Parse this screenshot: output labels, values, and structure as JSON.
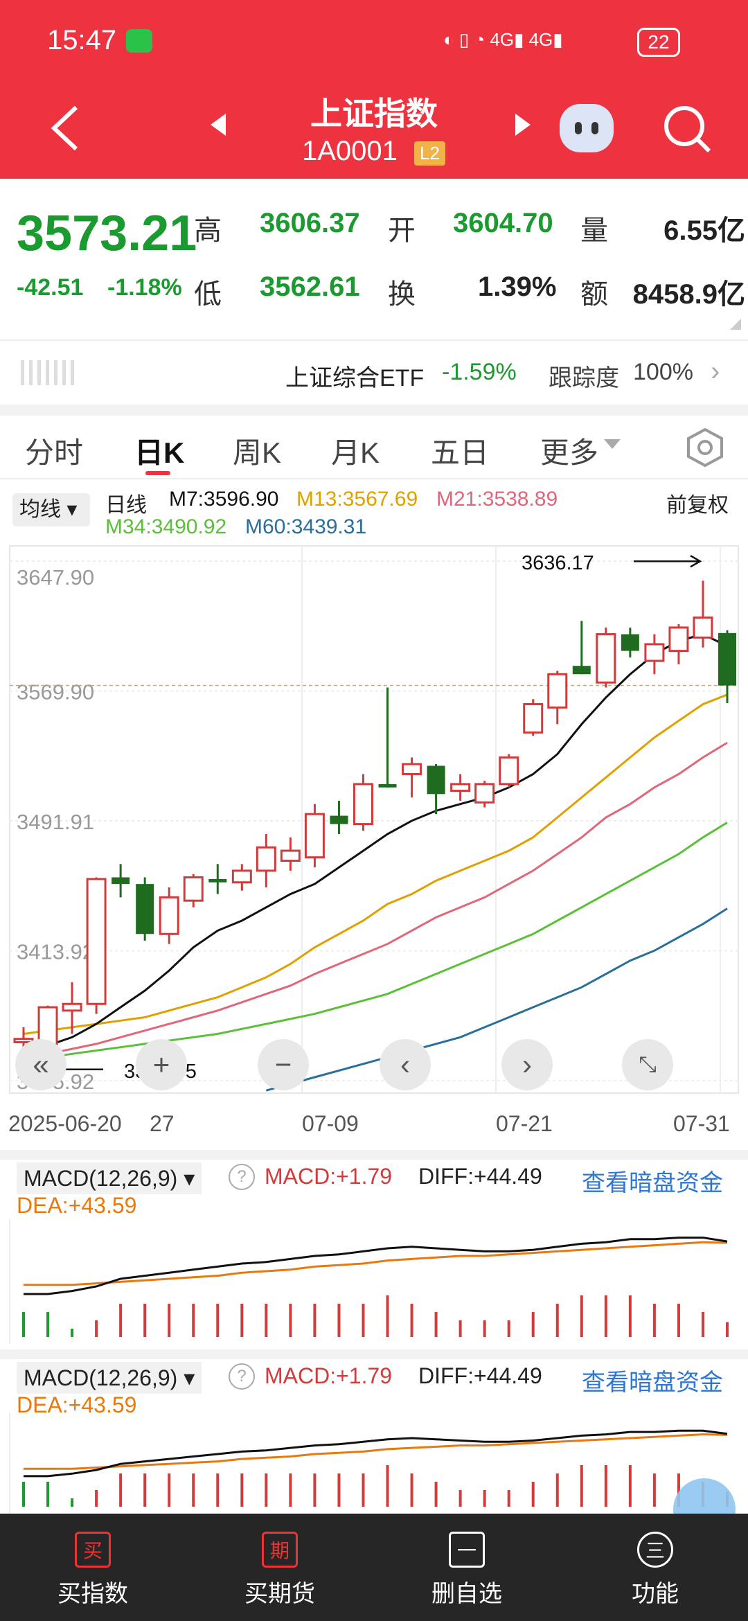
{
  "status_bar": {
    "time": "15:47",
    "battery": "22"
  },
  "header": {
    "title": "上证指数",
    "code": "1A0001",
    "level": "L2"
  },
  "quote": {
    "price": "3573.21",
    "change": "-42.51",
    "change_pct": "-1.18%",
    "high_label": "高",
    "high": "3606.37",
    "open_label": "开",
    "open": "3604.70",
    "vol_label": "量",
    "vol": "6.55亿",
    "low_label": "低",
    "low": "3562.61",
    "turn_label": "换",
    "turn": "1.39%",
    "amt_label": "额",
    "amt": "8458.9亿"
  },
  "etf": {
    "name": "上证综合ETF",
    "change": "-1.59%",
    "track_label": "跟踪度",
    "track": "100%"
  },
  "tabs": [
    "分时",
    "日K",
    "周K",
    "月K",
    "五日",
    "更多"
  ],
  "active_tab": "日K",
  "ma_legend": {
    "selector": "均线",
    "period": "日线",
    "m7": "M7:3596.90",
    "m13": "M13:3567.69",
    "m21": "M21:3538.89",
    "m34": "M34:3490.92",
    "m60": "M60:3439.31",
    "adjust": "前复权"
  },
  "colors": {
    "m7": "#111111",
    "m13": "#e0a000",
    "m21": "#e0667a",
    "m34": "#5bbf3a",
    "m60": "#2a6f9a",
    "up": "#d23b3b",
    "down": "#1f6b1f"
  },
  "chart_data": {
    "type": "candlestick",
    "y_ticks": [
      "3647.90",
      "3569.90",
      "3491.91",
      "3413.92",
      "3335.92"
    ],
    "x_ticks": [
      "2025-06-20",
      "27",
      "07-09",
      "07-21",
      "07-31"
    ],
    "max_label": "3636.17",
    "min_label": "3347.65",
    "ylim": [
      3335.92,
      3647.9
    ],
    "candles": [
      {
        "o": 3359,
        "h": 3368,
        "l": 3348,
        "c": 3361
      },
      {
        "o": 3354,
        "h": 3381,
        "l": 3347.65,
        "c": 3380
      },
      {
        "o": 3378,
        "h": 3395,
        "l": 3364,
        "c": 3382
      },
      {
        "o": 3382,
        "h": 3458,
        "l": 3376,
        "c": 3457
      },
      {
        "o": 3458,
        "h": 3466,
        "l": 3446,
        "c": 3454
      },
      {
        "o": 3454,
        "h": 3458,
        "l": 3420,
        "c": 3424
      },
      {
        "o": 3424,
        "h": 3452,
        "l": 3418,
        "c": 3446
      },
      {
        "o": 3444,
        "h": 3460,
        "l": 3440,
        "c": 3458
      },
      {
        "o": 3457,
        "h": 3466,
        "l": 3448,
        "c": 3455
      },
      {
        "o": 3455,
        "h": 3466,
        "l": 3450,
        "c": 3462
      },
      {
        "o": 3462,
        "h": 3484,
        "l": 3452,
        "c": 3476
      },
      {
        "o": 3468,
        "h": 3482,
        "l": 3462,
        "c": 3474
      },
      {
        "o": 3470,
        "h": 3502,
        "l": 3464,
        "c": 3496
      },
      {
        "o": 3495,
        "h": 3504,
        "l": 3484,
        "c": 3490
      },
      {
        "o": 3490,
        "h": 3520,
        "l": 3486,
        "c": 3514
      },
      {
        "o": 3514,
        "h": 3572,
        "l": 3512,
        "c": 3512
      },
      {
        "o": 3520,
        "h": 3530,
        "l": 3506,
        "c": 3526
      },
      {
        "o": 3525,
        "h": 3526,
        "l": 3496,
        "c": 3508
      },
      {
        "o": 3510,
        "h": 3520,
        "l": 3504,
        "c": 3514
      },
      {
        "o": 3503,
        "h": 3516,
        "l": 3500,
        "c": 3514
      },
      {
        "o": 3514,
        "h": 3532,
        "l": 3512,
        "c": 3530
      },
      {
        "o": 3545,
        "h": 3565,
        "l": 3543,
        "c": 3562
      },
      {
        "o": 3560,
        "h": 3582,
        "l": 3550,
        "c": 3580
      },
      {
        "o": 3585,
        "h": 3612,
        "l": 3580,
        "c": 3580
      },
      {
        "o": 3575,
        "h": 3608,
        "l": 3572,
        "c": 3604
      },
      {
        "o": 3604,
        "h": 3608,
        "l": 3590,
        "c": 3594
      },
      {
        "o": 3588,
        "h": 3604,
        "l": 3580,
        "c": 3598
      },
      {
        "o": 3594,
        "h": 3610,
        "l": 3586,
        "c": 3608
      },
      {
        "o": 3602,
        "h": 3636.17,
        "l": 3596,
        "c": 3614
      },
      {
        "o": 3604.7,
        "h": 3606.37,
        "l": 3562.61,
        "c": 3573.21
      }
    ],
    "ma": {
      "m7": [
        3356,
        3357,
        3362,
        3370,
        3380,
        3390,
        3402,
        3416,
        3426,
        3432,
        3440,
        3448,
        3454,
        3464,
        3474,
        3484,
        3492,
        3498,
        3502,
        3506,
        3512,
        3520,
        3532,
        3550,
        3566,
        3580,
        3592,
        3600,
        3604,
        3596.9
      ],
      "m13": [
        3364,
        3366,
        3368,
        3370,
        3372,
        3374,
        3378,
        3382,
        3386,
        3392,
        3398,
        3406,
        3416,
        3424,
        3432,
        3442,
        3448,
        3456,
        3462,
        3468,
        3474,
        3482,
        3494,
        3506,
        3518,
        3530,
        3542,
        3552,
        3562,
        3567.69
      ],
      "m21": [
        3350,
        3352,
        3355,
        3358,
        3362,
        3366,
        3370,
        3374,
        3378,
        3383,
        3388,
        3393,
        3400,
        3406,
        3412,
        3418,
        3426,
        3434,
        3440,
        3446,
        3454,
        3462,
        3472,
        3482,
        3494,
        3502,
        3512,
        3520,
        3530,
        3538.89
      ],
      "m34": [
        3348,
        3350,
        3352,
        3354,
        3356,
        3358,
        3360,
        3362,
        3364,
        3367,
        3370,
        3373,
        3376,
        3380,
        3384,
        3388,
        3394,
        3400,
        3406,
        3412,
        3418,
        3424,
        3432,
        3440,
        3448,
        3456,
        3464,
        3472,
        3482,
        3490.92
      ],
      "m60": [
        null,
        null,
        null,
        null,
        null,
        null,
        null,
        null,
        null,
        null,
        3330,
        3334,
        3338,
        3342,
        3346,
        3350,
        3354,
        3358,
        3362,
        3368,
        3374,
        3380,
        3386,
        3392,
        3400,
        3408,
        3414,
        3422,
        3430,
        3439.31
      ]
    }
  },
  "macd": {
    "label": "MACD(12,26,9)",
    "macd": "MACD:+1.79",
    "diff": "DIFF:+44.49",
    "dea": "DEA:+43.59",
    "link": "查看暗盘资金",
    "diff_series": [
      10,
      10,
      12,
      15,
      20,
      22,
      24,
      26,
      28,
      30,
      31,
      33,
      35,
      36,
      38,
      40,
      41,
      40,
      39,
      38,
      38,
      39,
      41,
      43,
      44,
      46,
      46,
      47,
      47,
      44.49
    ],
    "dea_series": [
      16,
      16,
      16,
      17,
      18,
      19,
      20,
      21,
      22,
      24,
      25,
      26,
      28,
      29,
      30,
      32,
      33,
      34,
      35,
      35,
      36,
      37,
      38,
      39,
      40,
      41,
      42,
      43,
      44,
      43.59
    ],
    "bars": [
      -3,
      -3,
      -1,
      2,
      4,
      4,
      4,
      4,
      4,
      4,
      4,
      4,
      4,
      4,
      4,
      5,
      4,
      3,
      2,
      2,
      2,
      3,
      4,
      5,
      5,
      5,
      4,
      4,
      3,
      1.79
    ]
  },
  "bottom_nav": [
    "买指数",
    "买期货",
    "删自选",
    "功能"
  ],
  "bottom_icons": [
    "买",
    "期",
    "一",
    "三"
  ]
}
